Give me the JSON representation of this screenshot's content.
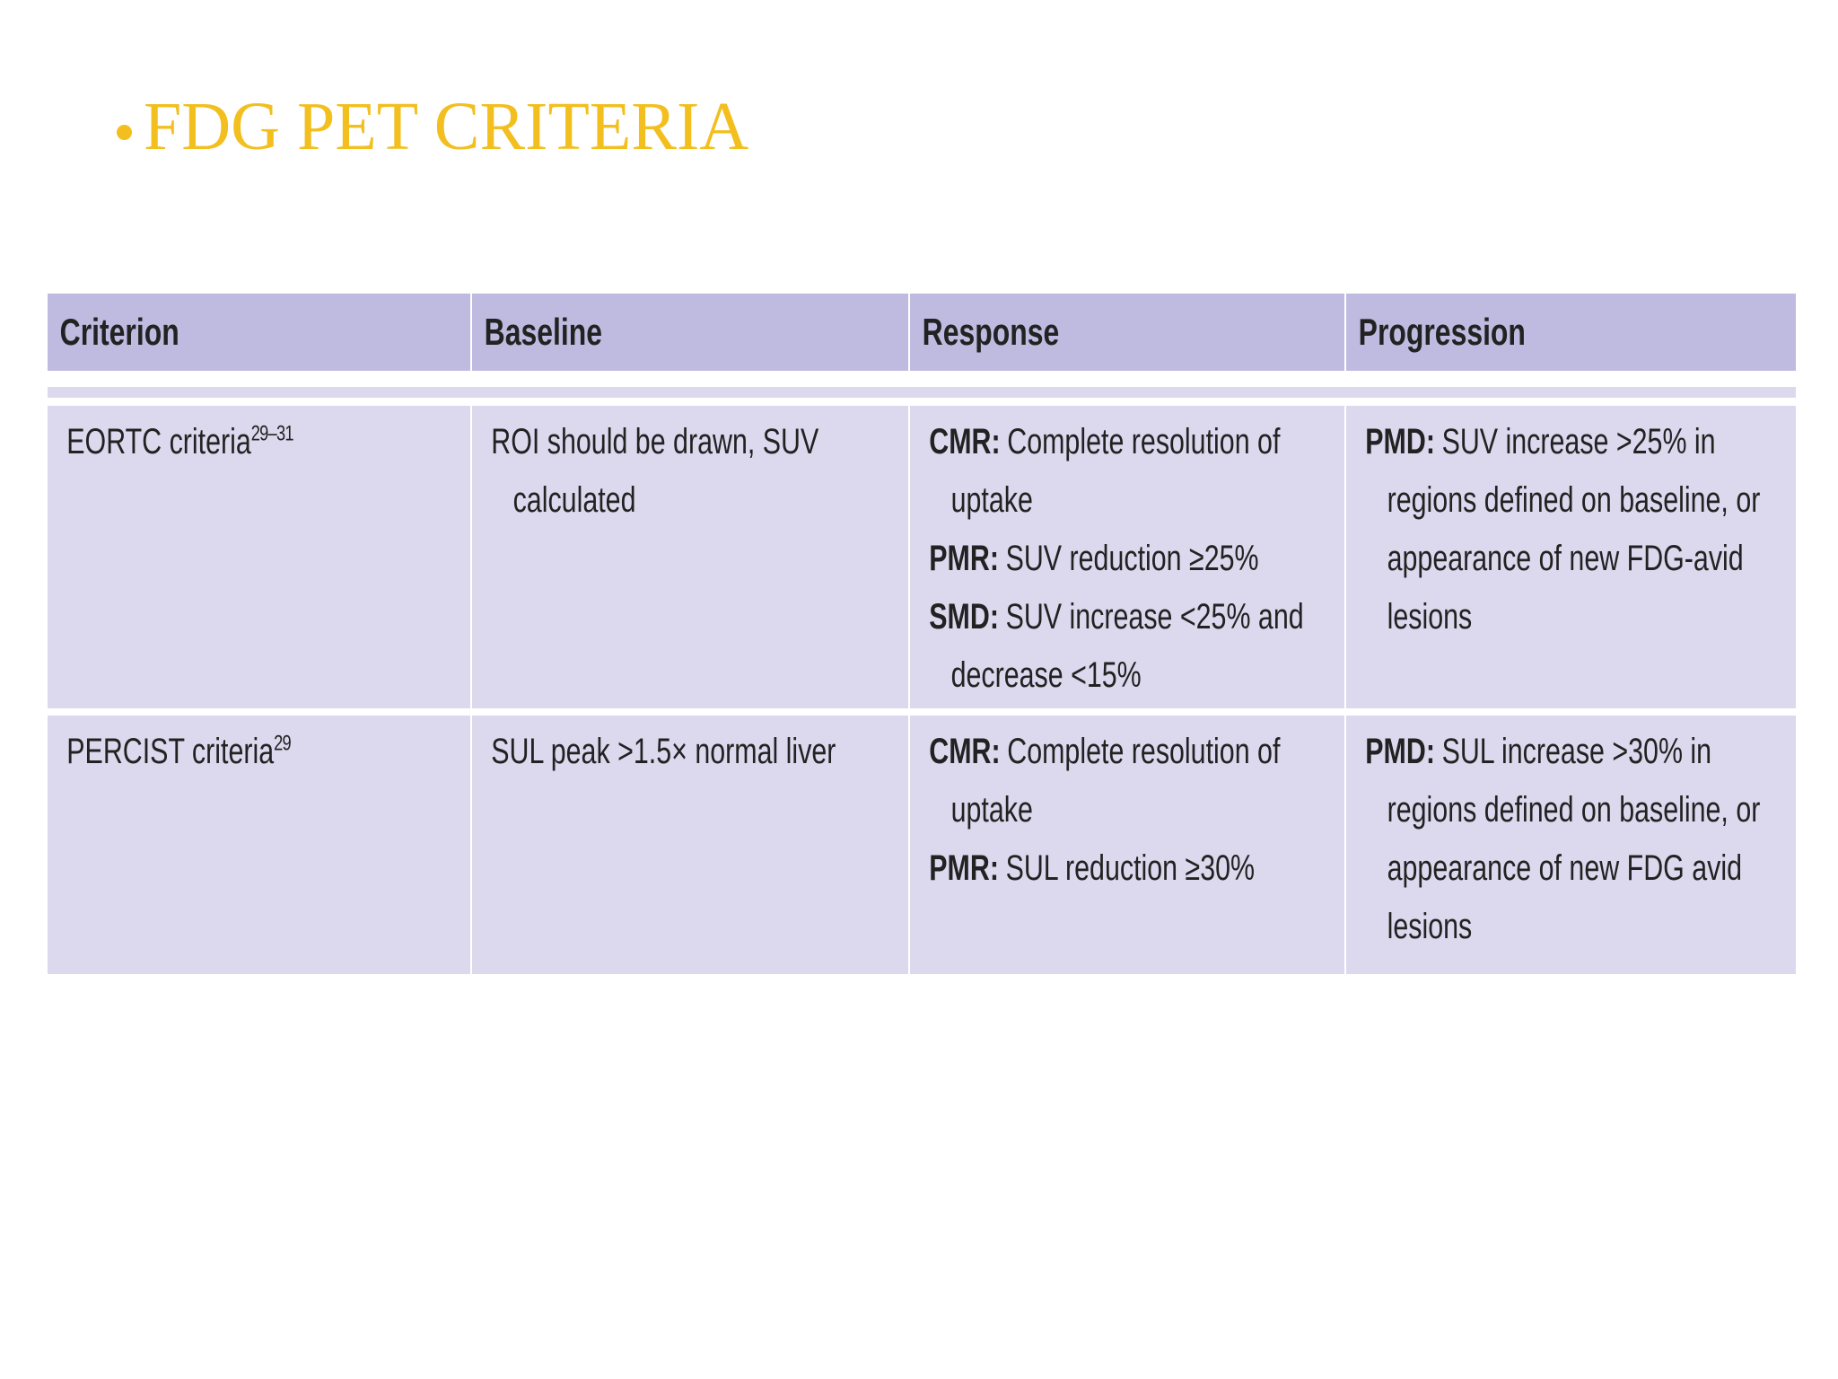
{
  "title": "FDG PET CRITERIA",
  "table": {
    "header": [
      "Criterion",
      "Baseline",
      "Response",
      "Progression"
    ],
    "rows": [
      [
        [
          {
            "text": "EORTC criteria",
            "sup": "29–31"
          }
        ],
        [
          {
            "text": "ROI should be drawn, SUV calculated"
          }
        ],
        [
          {
            "term": "CMR:",
            "text": "Complete resolution of uptake"
          },
          {
            "term": "PMR:",
            "text": "SUV reduction ≥25%"
          },
          {
            "term": "SMD:",
            "text": "SUV increase <25% and decrease <15%"
          }
        ],
        [
          {
            "term": "PMD:",
            "text": "SUV increase >25% in regions defined on baseline, or appearance of new FDG-avid lesions"
          }
        ]
      ],
      [
        [
          {
            "text": "PERCIST criteria",
            "sup": "29"
          }
        ],
        [
          {
            "text": "SUL peak >1.5× normal liver"
          }
        ],
        [
          {
            "term": "CMR:",
            "text": "Complete resolution of uptake"
          },
          {
            "term": "PMR:",
            "text": "SUL reduction ≥30%"
          }
        ],
        [
          {
            "term": "PMD:",
            "text": "SUL increase >30% in regions defined on baseline, or appearance of new FDG avid lesions"
          }
        ]
      ]
    ]
  }
}
